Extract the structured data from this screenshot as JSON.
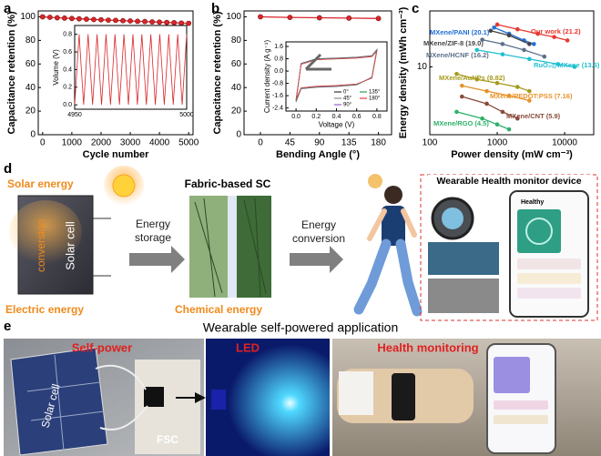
{
  "chart_data": [
    {
      "type": "line",
      "panel_label": "a",
      "xlabel": "Cycle number",
      "ylabel": "Capacitance retention (%)",
      "x": [
        0,
        250,
        500,
        750,
        1000,
        1250,
        1500,
        1750,
        2000,
        2250,
        2500,
        2750,
        3000,
        3250,
        3500,
        3750,
        4000,
        4250,
        4500,
        4750,
        5000
      ],
      "values": [
        100,
        99.6,
        99.2,
        98.9,
        98.6,
        98.3,
        98,
        97.7,
        97.5,
        97.2,
        97,
        96.7,
        96.5,
        96.2,
        96,
        95.7,
        95.5,
        95.2,
        95,
        94.7,
        94.5
      ],
      "color": "#d8262a",
      "marker": true,
      "xlim": [
        -150,
        5150
      ],
      "xticks": [
        0,
        1000,
        2000,
        3000,
        4000,
        5000
      ],
      "ylim": [
        0,
        105
      ],
      "yticks": [
        0,
        20,
        40,
        60,
        80,
        100
      ]
    },
    {
      "type": "line",
      "ylabel": "Volume (V)",
      "x": [
        4950,
        4952,
        4954,
        4956,
        4958,
        4960,
        4962,
        4964,
        4966,
        4968,
        4970,
        4972,
        4974,
        4976,
        4978,
        4980,
        4982,
        4984,
        4986,
        4988,
        4990,
        4992,
        4994,
        4996,
        4998,
        5000
      ],
      "values": [
        0,
        0.8,
        0,
        0.8,
        0,
        0.8,
        0,
        0.8,
        0,
        0.8,
        0,
        0.8,
        0,
        0.8,
        0,
        0.8,
        0,
        0.8,
        0,
        0.8,
        0,
        0.8,
        0,
        0.8,
        0,
        0.8
      ],
      "color": "#d8262a",
      "marker": false,
      "xlim": [
        4950,
        5000
      ],
      "xticks": [
        4950,
        5000
      ],
      "ylim": [
        -0.05,
        0.9
      ],
      "yticks": [
        {
          "value": 0,
          "label": "0.0"
        },
        {
          "value": 0.2,
          "label": "0.2"
        },
        {
          "value": 0.4,
          "label": "0.4"
        },
        {
          "value": 0.6,
          "label": "0.6"
        },
        {
          "value": 0.8,
          "label": "0.8"
        }
      ]
    },
    {
      "type": "line",
      "panel_label": "b",
      "xlabel": "Bending Angle (°)",
      "ylabel": "Capacitance retention (%)",
      "x": [
        0,
        45,
        90,
        135,
        180
      ],
      "values": [
        100,
        99.5,
        99.2,
        98.9,
        98.6
      ],
      "color": "#d8262a",
      "marker": true,
      "xlim": [
        -25,
        200
      ],
      "xticks": [
        0,
        45,
        90,
        135,
        180
      ],
      "ylim": [
        0,
        105
      ],
      "yticks": [
        0,
        20,
        40,
        60,
        80,
        100
      ]
    },
    {
      "type": "line",
      "xlabel": "Voltage (V)",
      "ylabel": "Current density (A g⁻¹)",
      "x": [
        0,
        0.05,
        0.2,
        0.4,
        0.6,
        0.75,
        0.8,
        0.75,
        0.6,
        0.4,
        0.2,
        0.05,
        0
      ],
      "series": [
        {
          "name": "0°",
          "color": "#333333",
          "values": [
            -2.0,
            0.5,
            0.8,
            0.85,
            0.9,
            1.0,
            1.4,
            -0.4,
            -0.9,
            -1.0,
            -1.05,
            -1.15,
            -2.0
          ]
        },
        {
          "name": "45°",
          "color": "#8a8a8a",
          "values": [
            -1.95,
            0.48,
            0.78,
            0.83,
            0.88,
            0.98,
            1.38,
            -0.42,
            -0.88,
            -0.98,
            -1.03,
            -1.13,
            -1.95
          ]
        },
        {
          "name": "90°",
          "color": "#9b59d0",
          "values": [
            -1.9,
            0.46,
            0.76,
            0.81,
            0.86,
            0.96,
            1.35,
            -0.44,
            -0.86,
            -0.96,
            -1.01,
            -1.11,
            -1.9
          ]
        },
        {
          "name": "135°",
          "color": "#2e9b5f",
          "values": [
            -1.88,
            0.45,
            0.75,
            0.8,
            0.85,
            0.95,
            1.33,
            -0.45,
            -0.85,
            -0.95,
            -1.0,
            -1.1,
            -1.88
          ]
        },
        {
          "name": "180°",
          "color": "#e04040",
          "values": [
            -1.85,
            0.44,
            0.74,
            0.79,
            0.84,
            0.94,
            1.3,
            -0.46,
            -0.84,
            -0.94,
            -0.99,
            -1.09,
            -1.85
          ]
        }
      ],
      "legend": "lower right",
      "xlim": [
        -0.1,
        0.9
      ],
      "xticks": [
        {
          "value": 0,
          "label": "0.0"
        },
        {
          "value": 0.2,
          "label": "0.2"
        },
        {
          "value": 0.4,
          "label": "0.4"
        },
        {
          "value": 0.6,
          "label": "0.6"
        },
        {
          "value": 0.8,
          "label": "0.8"
        }
      ],
      "ylim": [
        -2.6,
        1.9
      ],
      "yticks": [
        -2.4,
        -1.6,
        -0.8,
        {
          "value": 0,
          "label": "0.0"
        },
        0.8,
        1.6
      ]
    },
    {
      "type": "line",
      "panel_label": "c",
      "xlabel": "Power density (mW cm⁻³)",
      "ylabel": "Energy density (mWh cm⁻³)",
      "xlog": true,
      "ylog": true,
      "marker": true,
      "xlim": [
        100,
        27000
      ],
      "xticks": [
        100,
        1000,
        10000
      ],
      "ylim": [
        3,
        27
      ],
      "yticks": [
        10
      ],
      "series": [
        {
          "name": "Our work (21.2)",
          "color": "#e8382f",
          "x": [
            1000,
            2000,
            4000,
            7000,
            11000
          ],
          "values": [
            21.2,
            19.5,
            18,
            17,
            16
          ]
        },
        {
          "name": "MXene/PANI (20.1)",
          "color": "#1f6fd6",
          "x": [
            900,
            1500,
            2500,
            3500
          ],
          "values": [
            20.1,
            18,
            16,
            15
          ]
        },
        {
          "name": "MXene/ZIF-8 (19.0)",
          "color": "#444444",
          "x": [
            800,
            1500,
            3000
          ],
          "values": [
            19,
            17.5,
            15
          ]
        },
        {
          "name": "MXene/HCNF (16.2)",
          "color": "#5a6f8a",
          "x": [
            600,
            1200,
            2500,
            5000
          ],
          "values": [
            16.2,
            15,
            13.5,
            12
          ]
        },
        {
          "name": "RuO₂@MXene (13.5)",
          "color": "#1ebfd0",
          "x": [
            500,
            1200,
            3000,
            8000,
            14000
          ],
          "values": [
            13.5,
            12.5,
            11.5,
            10.5,
            10
          ]
        },
        {
          "name": "MXene/AuNPs (8.82)",
          "color": "#a59a1a",
          "x": [
            250,
            500,
            1000,
            2000,
            3000
          ],
          "values": [
            8.82,
            8,
            7.5,
            7,
            6.5
          ]
        },
        {
          "name": "MXene/PEDOT:PSS (7.16)",
          "color": "#e8922a",
          "x": [
            300,
            700,
            1500,
            3000
          ],
          "values": [
            7.16,
            6.5,
            6,
            5.5
          ]
        },
        {
          "name": "MXene/CNT (5.9)",
          "color": "#8a4a3a",
          "x": [
            300,
            700,
            1200,
            2000
          ],
          "values": [
            5.9,
            5.2,
            4.5,
            4
          ]
        },
        {
          "name": "MXene/RGO (4.5)",
          "color": "#2fb06a",
          "x": [
            250,
            600,
            1000,
            1500
          ],
          "values": [
            4.5,
            4,
            3.6,
            3.3
          ]
        }
      ]
    }
  ],
  "diagram": {
    "panel_label": "d",
    "solar_energy": "Solar energy",
    "solar_cell": "Solar cell",
    "conversion": "conversion",
    "electric_energy": "Electric energy",
    "energy_storage": [
      "Energy",
      "storage"
    ],
    "fabric_sc": "Fabric-based SC",
    "chemical_energy": "Chemical energy",
    "energy_conversion": [
      "Energy",
      "conversion"
    ],
    "device_title": "Wearable Health monitor device",
    "app_name": "Healthy"
  },
  "application": {
    "panel_label": "e",
    "title": "Wearable self-powered application",
    "self_power": "Self-power",
    "solar_cell": "Solar cell",
    "fsc": "FSC",
    "led": "LED",
    "health_monitoring": "Health monitoring"
  }
}
